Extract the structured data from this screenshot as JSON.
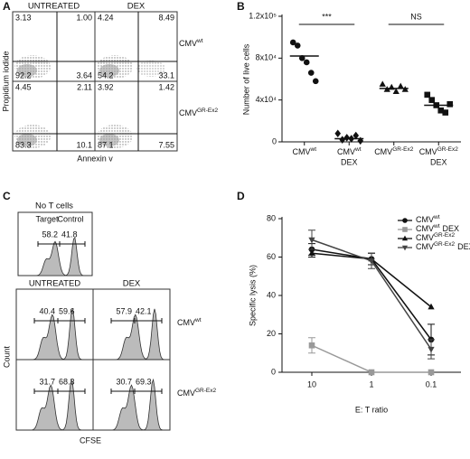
{
  "panel_labels": [
    "A",
    "B",
    "C",
    "D"
  ],
  "flow_cytometry": {
    "column_headers": [
      "UNTREATED",
      "DEX"
    ],
    "row_labels": [
      [
        "CMV",
        "wt"
      ],
      [
        "CMV",
        "GR-Ex2"
      ]
    ],
    "y_label": "Propidium iodide",
    "x_label": "Annexin v",
    "plots": [
      [
        "3.13",
        "1.00",
        "92.2",
        "3.64"
      ],
      [
        "4.24",
        "8.49",
        "54.2",
        "33.1"
      ],
      [
        "4.45",
        "2.11",
        "83.3",
        "10.1"
      ],
      [
        "3.92",
        "1.42",
        "87.1",
        "7.55"
      ]
    ]
  },
  "cfse": {
    "control_title": "No T cells",
    "control_gate_labels": [
      "Target",
      "Control"
    ],
    "control_values": [
      "58.2",
      "41.8"
    ],
    "column_headers": [
      "UNTREATED",
      "DEX"
    ],
    "row_labels": [
      [
        "CMV",
        "wt"
      ],
      [
        "CMV",
        "GR-Ex2"
      ]
    ],
    "y_label": "Count",
    "x_label": "CFSE",
    "plots": [
      [
        "40.4",
        "59.6"
      ],
      [
        "57.9",
        "42.1"
      ],
      [
        "31.7",
        "68.3"
      ],
      [
        "30.7",
        "69.3"
      ]
    ]
  },
  "chart_data": [
    {
      "type": "dot",
      "y_label": "Number of live cells",
      "categories": [
        [
          "CMV",
          "wt"
        ],
        [
          "CMV",
          "wt",
          "DEX"
        ],
        [
          "CMV",
          "GR-Ex2"
        ],
        [
          "CMV",
          "GR-Ex2",
          "DEX"
        ]
      ],
      "values": [
        [
          95000,
          92000,
          80000,
          76000,
          66000,
          58000
        ],
        [
          8000,
          2000,
          4000,
          3000,
          6000,
          1000
        ],
        [
          55000,
          50000,
          52000,
          48000,
          53000,
          50000
        ],
        [
          45000,
          40000,
          35000,
          30000,
          28000,
          36000
        ]
      ],
      "lines": [
        82000,
        3000,
        51000,
        35000
      ],
      "markers": [
        "circle",
        "diamond",
        "triangle",
        "square"
      ],
      "color": "#111111",
      "significance": [
        "***",
        "NS"
      ],
      "ylim": [
        0,
        120000
      ],
      "yticks": [
        0,
        {
          "value": 40000,
          "label": "4x10⁴"
        },
        {
          "value": 80000,
          "label": "8x10⁴"
        },
        {
          "value": 120000,
          "label": "1.2x10⁵"
        }
      ]
    },
    {
      "type": "line",
      "y_label": "Specific lysis (%)",
      "x_label": "E: T ratio",
      "categories": [
        "10",
        "1",
        "0.1"
      ],
      "series": [
        {
          "name": [
            "CMV",
            "wt"
          ],
          "color": "#111111",
          "marker": "circle",
          "values": [
            64,
            59,
            17
          ],
          "errors": [
            3,
            3,
            8
          ]
        },
        {
          "name": [
            "CMV",
            "wt",
            "DEX"
          ],
          "color": "#999999",
          "marker": "square",
          "values": [
            14,
            0,
            0
          ],
          "errors": [
            4,
            0,
            0
          ]
        },
        {
          "name": [
            "CMV",
            "GR-Ex2"
          ],
          "color": "#111111",
          "marker": "triangle",
          "values": [
            62,
            59,
            34
          ],
          "errors": [
            2,
            3,
            0
          ]
        },
        {
          "name": [
            "CMV",
            "GR-Ex2",
            "DEX"
          ],
          "color": "#444444",
          "marker": "triangle-down",
          "values": [
            69,
            58,
            12
          ],
          "errors": [
            5,
            4,
            5
          ]
        }
      ],
      "ylim": [
        0,
        80
      ],
      "yticks": [
        0,
        20,
        40,
        60,
        80
      ]
    }
  ]
}
